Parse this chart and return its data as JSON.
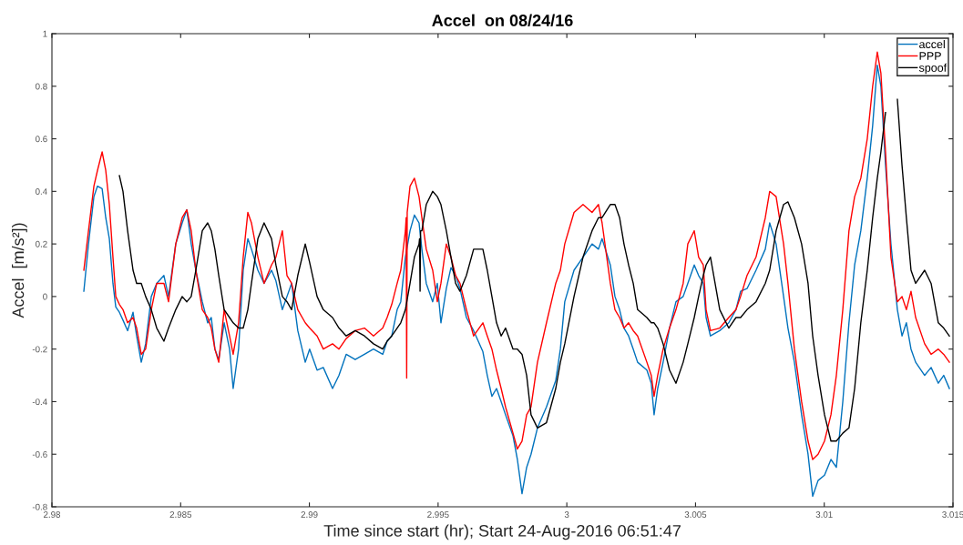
{
  "chart_data": {
    "type": "line",
    "title": "Accel  on 08/24/16",
    "xlabel": "Time since start (hr); Start 24-Aug-2016 06:51:47",
    "ylabel": "Accel  [m/s²])",
    "xlim": [
      2.98,
      3.015
    ],
    "xticks": [
      2.98,
      2.985,
      2.99,
      2.995,
      3,
      3.005,
      3.01,
      3.015
    ],
    "ylim": [
      -0.8,
      1
    ],
    "yticks": [
      -0.8,
      -0.6,
      -0.4,
      -0.2,
      0,
      0.2,
      0.4,
      0.6,
      0.8,
      1
    ],
    "grid": false,
    "legend": "top right",
    "line_style": "solid",
    "series": [
      {
        "name": "accel",
        "color": "#0072bd",
        "x": [
          2.98124,
          2.98142,
          2.98163,
          2.98177,
          2.98195,
          2.98209,
          2.98223,
          2.98237,
          2.98248,
          2.98262,
          2.98276,
          2.98294,
          2.98315,
          2.98329,
          2.98347,
          2.98364,
          2.98386,
          2.98407,
          2.98435,
          2.98453,
          2.98481,
          2.98506,
          2.98524,
          2.98541,
          2.98559,
          2.98584,
          2.98605,
          2.98619,
          2.98633,
          2.98648,
          2.98669,
          2.9869,
          2.98704,
          2.98725,
          2.98743,
          2.98761,
          2.98775,
          2.988,
          2.98824,
          2.98853,
          2.9887,
          2.98895,
          2.98913,
          2.98931,
          2.98955,
          2.98984,
          2.99001,
          2.9903,
          2.99054,
          2.9909,
          2.99115,
          2.99143,
          2.99178,
          2.99214,
          2.99249,
          2.99285,
          2.99302,
          2.9932,
          2.99341,
          2.99355,
          2.99373,
          2.99391,
          2.99408,
          2.99426,
          2.99437,
          2.99454,
          2.99479,
          2.99497,
          2.99511,
          2.99532,
          2.9955,
          2.99568,
          2.99585,
          2.9961,
          2.99638,
          2.99674,
          2.99691,
          2.99709,
          2.99727,
          2.99745,
          2.99762,
          2.99791,
          2.99808,
          2.99826,
          2.99844,
          2.99861,
          2.99886,
          2.99921,
          2.99957,
          2.99975,
          2.99992,
          3.00028,
          3.00063,
          3.00098,
          3.00123,
          3.00137,
          3.00169,
          3.00187,
          3.00205,
          3.00222,
          3.0024,
          3.00258,
          3.00275,
          3.00311,
          3.00328,
          3.00339,
          3.00353,
          3.00374,
          3.00399,
          3.00424,
          3.00452,
          3.0047,
          3.00495,
          3.00512,
          3.0053,
          3.00541,
          3.00558,
          3.00594,
          3.00629,
          3.00657,
          3.00675,
          3.007,
          3.00735,
          3.00771,
          3.00788,
          3.00813,
          3.00842,
          3.00859,
          3.00884,
          3.00912,
          3.00937,
          3.00955,
          3.00976,
          3.01001,
          3.01026,
          3.01047,
          3.01072,
          3.01096,
          3.01118,
          3.01142,
          3.01167,
          3.01188,
          3.01206,
          3.0122,
          3.01238,
          3.01259,
          3.01284,
          3.01302,
          3.01319,
          3.01337,
          3.01355,
          3.0139,
          3.01415,
          3.01443,
          3.01464,
          3.01486
        ],
        "values": [
          0.02,
          0.2,
          0.38,
          0.42,
          0.41,
          0.3,
          0.22,
          0.05,
          -0.04,
          -0.06,
          -0.09,
          -0.13,
          -0.06,
          -0.15,
          -0.25,
          -0.18,
          0.0,
          0.05,
          0.08,
          0.0,
          0.2,
          0.28,
          0.33,
          0.2,
          0.1,
          -0.02,
          -0.1,
          -0.08,
          -0.2,
          -0.24,
          -0.1,
          -0.2,
          -0.35,
          -0.2,
          0.1,
          0.22,
          0.18,
          0.1,
          0.05,
          0.1,
          0.06,
          -0.05,
          0.0,
          0.05,
          -0.13,
          -0.25,
          -0.2,
          -0.28,
          -0.27,
          -0.35,
          -0.3,
          -0.22,
          -0.24,
          -0.22,
          -0.2,
          -0.22,
          -0.17,
          -0.15,
          -0.05,
          -0.02,
          0.15,
          0.25,
          0.31,
          0.28,
          0.18,
          0.05,
          -0.02,
          0.05,
          -0.1,
          0.03,
          0.11,
          0.08,
          0.03,
          -0.08,
          -0.13,
          -0.21,
          -0.3,
          -0.38,
          -0.35,
          -0.4,
          -0.45,
          -0.53,
          -0.62,
          -0.75,
          -0.65,
          -0.6,
          -0.5,
          -0.42,
          -0.32,
          -0.2,
          -0.02,
          0.1,
          0.15,
          0.2,
          0.18,
          0.22,
          0.12,
          0.0,
          -0.05,
          -0.12,
          -0.15,
          -0.2,
          -0.25,
          -0.28,
          -0.33,
          -0.45,
          -0.35,
          -0.25,
          -0.12,
          -0.02,
          0.0,
          0.05,
          0.12,
          0.08,
          0.05,
          -0.08,
          -0.15,
          -0.13,
          -0.1,
          -0.05,
          0.02,
          0.03,
          0.1,
          0.18,
          0.28,
          0.2,
          0.0,
          -0.12,
          -0.25,
          -0.45,
          -0.6,
          -0.76,
          -0.7,
          -0.68,
          -0.62,
          -0.65,
          -0.4,
          -0.1,
          0.12,
          0.25,
          0.45,
          0.65,
          0.88,
          0.8,
          0.5,
          0.2,
          -0.05,
          -0.15,
          -0.1,
          -0.2,
          -0.25,
          -0.3,
          -0.27,
          -0.33,
          -0.3,
          -0.35
        ]
      },
      {
        "name": "PPP",
        "color": "#ff0000",
        "x": [
          2.98124,
          2.98142,
          2.98163,
          2.98177,
          2.98195,
          2.98209,
          2.98223,
          2.98237,
          2.98248,
          2.98262,
          2.98276,
          2.98294,
          2.98315,
          2.98329,
          2.98347,
          2.98364,
          2.98386,
          2.98407,
          2.98435,
          2.98453,
          2.98481,
          2.98506,
          2.98524,
          2.98541,
          2.98559,
          2.98584,
          2.98605,
          2.98619,
          2.98633,
          2.98648,
          2.98669,
          2.9869,
          2.98704,
          2.98725,
          2.98743,
          2.98761,
          2.98775,
          2.988,
          2.98824,
          2.98853,
          2.9887,
          2.98895,
          2.98913,
          2.98931,
          2.98955,
          2.98984,
          2.99001,
          2.9903,
          2.99054,
          2.9909,
          2.99115,
          2.99143,
          2.99178,
          2.99214,
          2.99249,
          2.99285,
          2.99302,
          2.9932,
          2.99341,
          2.99355,
          2.99373,
          2.99376,
          2.99378,
          2.9938,
          2.99391,
          2.99408,
          2.99426,
          2.99437,
          2.99454,
          2.99479,
          2.99497,
          2.99511,
          2.99532,
          2.9955,
          2.99568,
          2.99585,
          2.9961,
          2.99638,
          2.99674,
          2.99691,
          2.99709,
          2.99727,
          2.99745,
          2.99762,
          2.99791,
          2.99808,
          2.99826,
          2.99844,
          2.99861,
          2.99886,
          2.99921,
          2.99957,
          2.99975,
          2.99992,
          3.00028,
          3.00063,
          3.00098,
          3.00123,
          3.00137,
          3.00169,
          3.00187,
          3.00205,
          3.00222,
          3.0024,
          3.00258,
          3.00275,
          3.00311,
          3.00328,
          3.00339,
          3.00353,
          3.00374,
          3.00399,
          3.00424,
          3.00452,
          3.0047,
          3.00495,
          3.00512,
          3.0053,
          3.00541,
          3.00558,
          3.00594,
          3.00629,
          3.00657,
          3.00675,
          3.007,
          3.00735,
          3.00771,
          3.00788,
          3.00813,
          3.00842,
          3.00859,
          3.00884,
          3.00912,
          3.00937,
          3.00955,
          3.00976,
          3.01001,
          3.01026,
          3.01047,
          3.01072,
          3.01096,
          3.01118,
          3.01142,
          3.01167,
          3.01188,
          3.01206,
          3.0122,
          3.01238,
          3.01259,
          3.01284,
          3.01302,
          3.01319,
          3.01337,
          3.01355,
          3.0139,
          3.01415,
          3.01443,
          3.01464,
          3.01486
        ],
        "values": [
          0.1,
          0.25,
          0.42,
          0.48,
          0.55,
          0.48,
          0.35,
          0.15,
          0.0,
          -0.03,
          -0.05,
          -0.1,
          -0.08,
          -0.12,
          -0.22,
          -0.2,
          -0.05,
          0.05,
          0.05,
          -0.02,
          0.2,
          0.3,
          0.33,
          0.25,
          0.1,
          -0.05,
          -0.08,
          -0.12,
          -0.2,
          -0.25,
          -0.05,
          -0.15,
          -0.22,
          -0.1,
          0.15,
          0.32,
          0.28,
          0.15,
          0.05,
          0.12,
          0.15,
          0.25,
          0.08,
          0.05,
          -0.05,
          -0.1,
          -0.12,
          -0.15,
          -0.2,
          -0.18,
          -0.2,
          -0.16,
          -0.13,
          -0.12,
          -0.15,
          -0.12,
          -0.08,
          -0.03,
          0.05,
          0.1,
          0.25,
          0.3,
          -0.31,
          0.32,
          0.42,
          0.45,
          0.38,
          0.3,
          0.18,
          0.1,
          -0.02,
          0.05,
          0.2,
          0.15,
          0.08,
          0.05,
          -0.05,
          -0.15,
          -0.1,
          -0.15,
          -0.2,
          -0.28,
          -0.35,
          -0.42,
          -0.52,
          -0.58,
          -0.55,
          -0.45,
          -0.42,
          -0.25,
          -0.1,
          0.05,
          0.1,
          0.2,
          0.32,
          0.35,
          0.32,
          0.35,
          0.28,
          0.05,
          -0.05,
          -0.08,
          -0.12,
          -0.1,
          -0.13,
          -0.15,
          -0.25,
          -0.3,
          -0.38,
          -0.3,
          -0.2,
          -0.12,
          -0.05,
          0.05,
          0.2,
          0.25,
          0.15,
          0.12,
          -0.05,
          -0.13,
          -0.12,
          -0.08,
          -0.05,
          0.0,
          0.08,
          0.15,
          0.3,
          0.4,
          0.38,
          0.2,
          0.05,
          -0.2,
          -0.4,
          -0.55,
          -0.62,
          -0.6,
          -0.55,
          -0.45,
          -0.3,
          -0.05,
          0.25,
          0.38,
          0.45,
          0.6,
          0.8,
          0.93,
          0.85,
          0.55,
          0.15,
          -0.02,
          0.0,
          -0.05,
          0.02,
          -0.08,
          -0.18,
          -0.22,
          -0.2,
          -0.22,
          -0.25
        ]
      },
      {
        "name": "spoof",
        "color": "#000000",
        "x": [
          2.98262,
          2.98276,
          2.98294,
          2.98315,
          2.98329,
          2.98347,
          2.98364,
          2.98386,
          2.98407,
          2.98435,
          2.98453,
          2.98481,
          2.98506,
          2.98524,
          2.98541,
          2.98559,
          2.98584,
          2.98605,
          2.98619,
          2.98633,
          2.98648,
          2.98669,
          2.9869,
          2.98704,
          2.98725,
          2.98743,
          2.98761,
          2.98775,
          2.988,
          2.98824,
          2.98853,
          2.9887,
          2.98895,
          2.98913,
          2.98931,
          2.98955,
          2.98984,
          2.99001,
          2.9903,
          2.99054,
          2.9909,
          2.99115,
          2.99143,
          2.99178,
          2.99214,
          2.99249,
          2.99285,
          2.99302,
          2.9932,
          2.99341,
          2.99355,
          2.99373,
          2.99391,
          2.99408,
          2.99426,
          2.99428,
          2.9943,
          2.99432,
          2.99437,
          2.99454,
          2.99479,
          2.99497,
          2.99511,
          2.99532,
          2.9955,
          2.99568,
          2.99585,
          2.9961,
          2.99638,
          2.99674,
          2.99691,
          2.99709,
          2.99727,
          2.99745,
          2.99762,
          2.99791,
          2.99808,
          2.99826,
          2.99844,
          2.99861,
          2.99886,
          2.99921,
          2.99957,
          2.99975,
          2.99992,
          3.00028,
          3.00063,
          3.00098,
          3.00123,
          3.00137,
          3.00169,
          3.00187,
          3.00205,
          3.00222,
          3.0024,
          3.00258,
          3.00275,
          3.00311,
          3.00328,
          3.00339,
          3.00353,
          3.00374,
          3.00399,
          3.00424,
          3.00452,
          3.0047,
          3.00495,
          3.00512,
          3.0053,
          3.00541,
          3.00558,
          3.00594,
          3.00629,
          3.00657,
          3.00675,
          3.007,
          3.00735,
          3.00771,
          3.00788,
          3.00813,
          3.00842,
          3.00859,
          3.00884,
          3.00912,
          3.00937,
          3.00955,
          3.00976,
          3.01001,
          3.01026,
          3.01047,
          3.01072,
          3.01096,
          3.01118,
          3.01142,
          3.01167,
          3.01188,
          3.01206,
          3.0122,
          3.01238,
          3.01259,
          3.01284,
          3.01302,
          3.01319,
          3.01337,
          3.01355,
          3.0139,
          3.01415,
          3.01443,
          3.01464,
          3.01486
        ],
        "values": [
          0.46,
          0.4,
          0.25,
          0.1,
          0.05,
          0.05,
          0.0,
          -0.05,
          -0.12,
          -0.17,
          -0.12,
          -0.05,
          0.0,
          -0.02,
          0.0,
          0.1,
          0.25,
          0.28,
          0.25,
          0.18,
          0.08,
          -0.05,
          -0.08,
          -0.1,
          -0.12,
          -0.12,
          -0.05,
          0.05,
          0.22,
          0.28,
          0.22,
          0.12,
          0.0,
          -0.02,
          -0.05,
          0.08,
          0.2,
          0.13,
          0.0,
          -0.05,
          -0.08,
          -0.12,
          -0.15,
          -0.13,
          -0.15,
          -0.18,
          -0.2,
          -0.17,
          -0.15,
          -0.12,
          -0.1,
          -0.05,
          0.05,
          0.15,
          0.2,
          0.22,
          0.02,
          0.25,
          0.25,
          0.35,
          0.4,
          0.38,
          0.35,
          0.25,
          0.15,
          0.05,
          0.02,
          0.08,
          0.18,
          0.18,
          0.1,
          0.0,
          -0.1,
          -0.15,
          -0.12,
          -0.2,
          -0.2,
          -0.22,
          -0.3,
          -0.45,
          -0.5,
          -0.48,
          -0.35,
          -0.25,
          -0.18,
          0.0,
          0.15,
          0.25,
          0.3,
          0.3,
          0.35,
          0.35,
          0.3,
          0.2,
          0.12,
          0.05,
          -0.05,
          -0.08,
          -0.1,
          -0.1,
          -0.12,
          -0.18,
          -0.28,
          -0.33,
          -0.25,
          -0.18,
          -0.08,
          0.0,
          0.08,
          0.12,
          0.15,
          -0.05,
          -0.12,
          -0.08,
          -0.08,
          -0.05,
          -0.02,
          0.05,
          0.1,
          0.25,
          0.35,
          0.36,
          0.3,
          0.2,
          0.05,
          -0.15,
          -0.3,
          -0.45,
          -0.55,
          -0.55,
          -0.52,
          -0.5,
          -0.35,
          -0.1,
          0.1,
          0.3,
          0.45,
          0.55,
          0.7,
          null,
          0.75,
          0.5,
          0.3,
          0.1,
          0.05,
          0.1,
          0.05,
          -0.1,
          -0.12,
          -0.15
        ]
      }
    ]
  }
}
